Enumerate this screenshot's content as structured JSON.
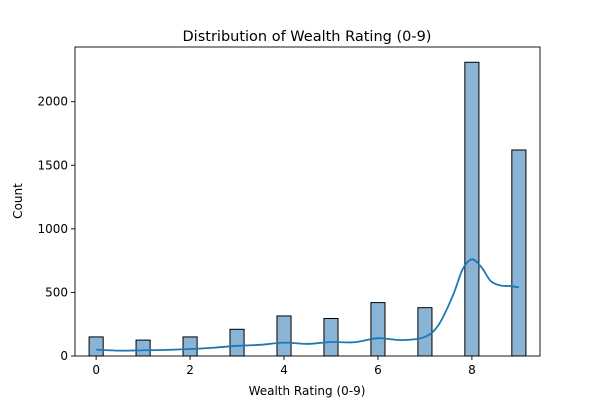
{
  "chart_data": {
    "type": "bar",
    "title": "Distribution of Wealth Rating (0-9)",
    "xlabel": "Wealth Rating (0-9)",
    "ylabel": "Count",
    "categories": [
      0,
      1,
      2,
      3,
      4,
      5,
      6,
      7,
      8,
      9
    ],
    "values": [
      150,
      125,
      150,
      210,
      315,
      295,
      420,
      380,
      2310,
      1620
    ],
    "xlim": [
      -0.45,
      9.45
    ],
    "ylim": [
      0,
      2430
    ],
    "xticks": [
      0,
      2,
      4,
      6,
      8
    ],
    "yticks": [
      0,
      500,
      1000,
      1500,
      2000
    ],
    "bar_width": 0.3,
    "grid": false,
    "bar_color": "#8ab4d6",
    "kde_color": "#1f77b4",
    "kde_curve": {
      "x": [
        0,
        0.5,
        1,
        1.5,
        2,
        2.5,
        3,
        3.5,
        4,
        4.5,
        5,
        5.5,
        6,
        6.5,
        7,
        7.3,
        7.6,
        7.8,
        8,
        8.2,
        8.4,
        8.6,
        8.8,
        9
      ],
      "y": [
        50,
        42,
        45,
        48,
        55,
        65,
        80,
        88,
        105,
        95,
        110,
        108,
        140,
        125,
        150,
        250,
        480,
        680,
        760,
        700,
        590,
        555,
        550,
        540
      ]
    }
  }
}
